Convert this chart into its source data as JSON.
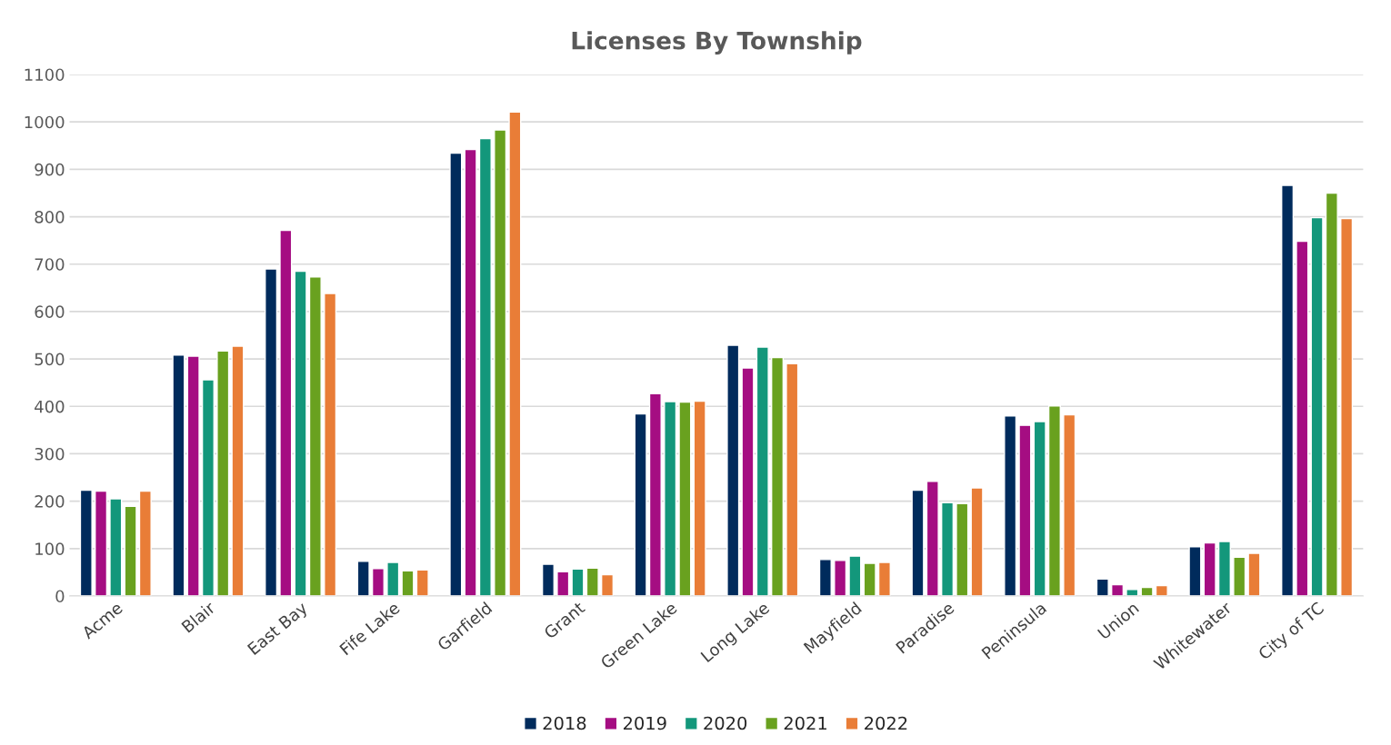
{
  "chart_data": {
    "type": "bar",
    "title": "Licenses By Township",
    "categories": [
      "Acme",
      "Blair",
      "East Bay",
      "Fife Lake",
      "Garfield",
      "Grant",
      "Green Lake",
      "Long Lake",
      "Mayfield",
      "Paradise",
      "Peninsula",
      "Union",
      "Whitewater",
      "City of TC"
    ],
    "series": [
      {
        "name": "2018",
        "color": "#002b5c",
        "values": [
          223,
          508,
          690,
          73,
          934,
          67,
          384,
          529,
          77,
          223,
          380,
          36,
          104,
          866
        ]
      },
      {
        "name": "2019",
        "color": "#a50d82",
        "values": [
          221,
          506,
          771,
          58,
          942,
          51,
          427,
          481,
          75,
          242,
          360,
          24,
          112,
          748
        ]
      },
      {
        "name": "2020",
        "color": "#13977b",
        "values": [
          205,
          456,
          685,
          71,
          965,
          57,
          410,
          525,
          84,
          197,
          368,
          14,
          115,
          798
        ]
      },
      {
        "name": "2021",
        "color": "#69a11f",
        "values": [
          189,
          517,
          673,
          53,
          983,
          59,
          409,
          503,
          69,
          195,
          401,
          18,
          82,
          850
        ]
      },
      {
        "name": "2022",
        "color": "#e97d37",
        "values": [
          221,
          527,
          638,
          55,
          1021,
          45,
          411,
          490,
          71,
          228,
          382,
          22,
          90,
          796
        ]
      }
    ],
    "ylim": [
      0,
      1100
    ],
    "yticks": [
      0,
      100,
      200,
      300,
      400,
      500,
      600,
      700,
      800,
      900,
      1000,
      1100
    ],
    "grid": "y",
    "legend": "bottom"
  }
}
